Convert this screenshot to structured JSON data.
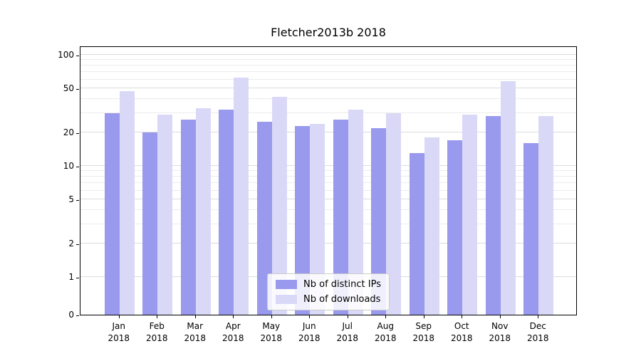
{
  "chart_data": {
    "type": "bar",
    "title": "Fletcher2013b 2018",
    "year": "2018",
    "categories": [
      "Jan",
      "Feb",
      "Mar",
      "Apr",
      "May",
      "Jun",
      "Jul",
      "Aug",
      "Sep",
      "Oct",
      "Nov",
      "Dec"
    ],
    "series": [
      {
        "name": "Nb of distinct IPs",
        "color": "#9999ee",
        "values": [
          30,
          20,
          26,
          32,
          25,
          23,
          26,
          22,
          13,
          17,
          28,
          16
        ]
      },
      {
        "name": "Nb of downloads",
        "color": "#d9d9f7",
        "values": [
          47,
          29,
          33,
          62,
          42,
          24,
          32,
          30,
          18,
          29,
          58,
          28
        ]
      }
    ],
    "yscale": "symlog",
    "ylim": [
      0,
      120
    ],
    "yticks": [
      0,
      1,
      2,
      5,
      10,
      20,
      50,
      100
    ],
    "y_minor_gridlines": [
      3,
      4,
      6,
      7,
      8,
      9,
      30,
      40,
      60,
      70,
      80,
      90
    ],
    "grid": true,
    "legend_position": "lower center"
  }
}
